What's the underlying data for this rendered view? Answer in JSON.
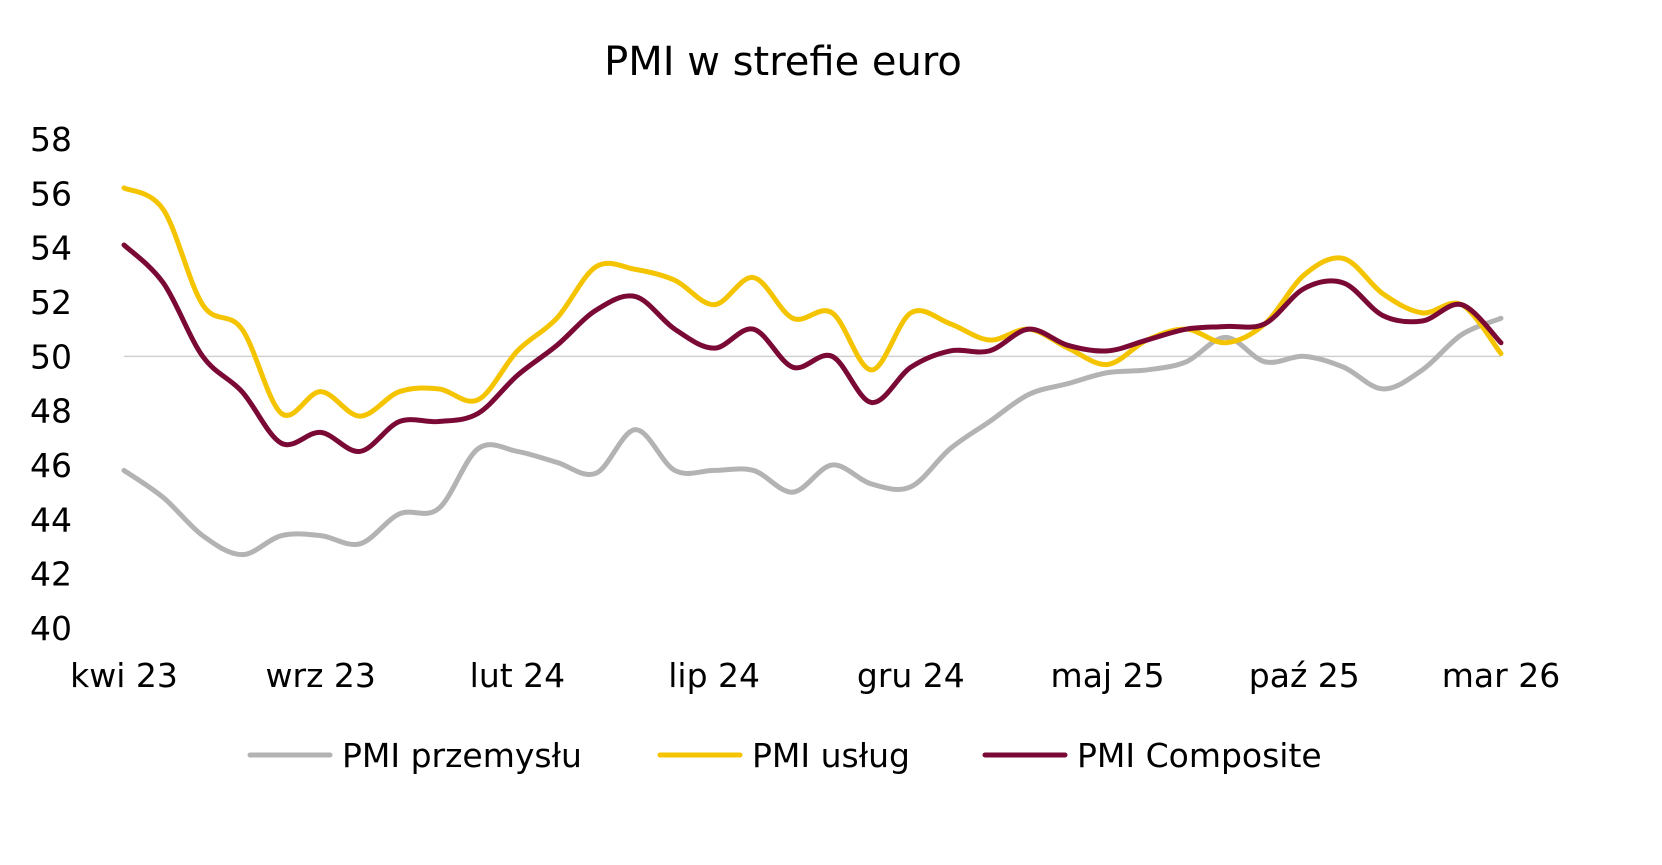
{
  "chart_data": {
    "type": "line",
    "title": "PMI w strefie euro",
    "xlabel": "",
    "ylabel": "",
    "ylim": [
      40,
      58
    ],
    "yticks": [
      "40",
      "42",
      "44",
      "46",
      "48",
      "50",
      "52",
      "54",
      "56",
      "58"
    ],
    "reference_line": 50,
    "grid": false,
    "legend_position": "bottom",
    "x": [
      "kwi 23",
      "maj 23",
      "cze 23",
      "lip 23",
      "sie 23",
      "wrz 23",
      "paź 23",
      "lis 23",
      "gru 23",
      "sty 24",
      "lut 24",
      "mar 24",
      "kwi 24",
      "maj 24",
      "cze 24",
      "lip 24",
      "sie 24",
      "wrz 24",
      "paź 24",
      "lis 24",
      "gru 24",
      "sty 25",
      "lut 25",
      "mar 25",
      "kwi 25",
      "maj 25",
      "cze 25",
      "lip 25",
      "sie 25",
      "wrz 25",
      "paź 25",
      "lis 25",
      "gru 25",
      "sty 26",
      "lut 26",
      "mar 26"
    ],
    "xtick_labels": [
      "kwi 23",
      "wrz 23",
      "lut 24",
      "lip 24",
      "gru 24",
      "maj 25",
      "paź 25",
      "mar 26"
    ],
    "series": [
      {
        "name": "PMI przemysłu",
        "color": "#b3b3b3",
        "values": [
          45.8,
          44.8,
          43.4,
          42.7,
          43.4,
          43.4,
          43.1,
          44.2,
          44.4,
          46.6,
          46.5,
          46.1,
          45.7,
          47.3,
          45.8,
          45.8,
          45.8,
          45.0,
          46.0,
          45.3,
          45.2,
          46.6,
          47.6,
          48.6,
          49.0,
          49.4,
          49.5,
          49.8,
          50.7,
          49.8,
          50.0,
          49.6,
          48.8,
          49.5,
          50.8,
          51.4
        ]
      },
      {
        "name": "PMI usług",
        "color": "#f5c400",
        "values": [
          56.2,
          55.4,
          51.9,
          51.0,
          47.9,
          48.7,
          47.8,
          48.7,
          48.8,
          48.4,
          50.2,
          51.4,
          53.3,
          53.2,
          52.8,
          51.9,
          52.9,
          51.4,
          51.6,
          49.5,
          51.6,
          51.2,
          50.6,
          51.0,
          50.3,
          49.7,
          50.6,
          51.0,
          50.5,
          51.2,
          53.0,
          53.6,
          52.3,
          51.6,
          51.9,
          50.1
        ]
      },
      {
        "name": "PMI Composite",
        "color": "#7a0a35",
        "values": [
          54.1,
          52.7,
          50.0,
          48.7,
          46.8,
          47.2,
          46.5,
          47.6,
          47.6,
          47.9,
          49.3,
          50.4,
          51.7,
          52.2,
          51.0,
          50.3,
          51.0,
          49.6,
          50.0,
          48.3,
          49.6,
          50.2,
          50.2,
          51.0,
          50.4,
          50.2,
          50.6,
          51.0,
          51.1,
          51.2,
          52.5,
          52.7,
          51.5,
          51.3,
          51.9,
          50.5
        ]
      }
    ]
  }
}
